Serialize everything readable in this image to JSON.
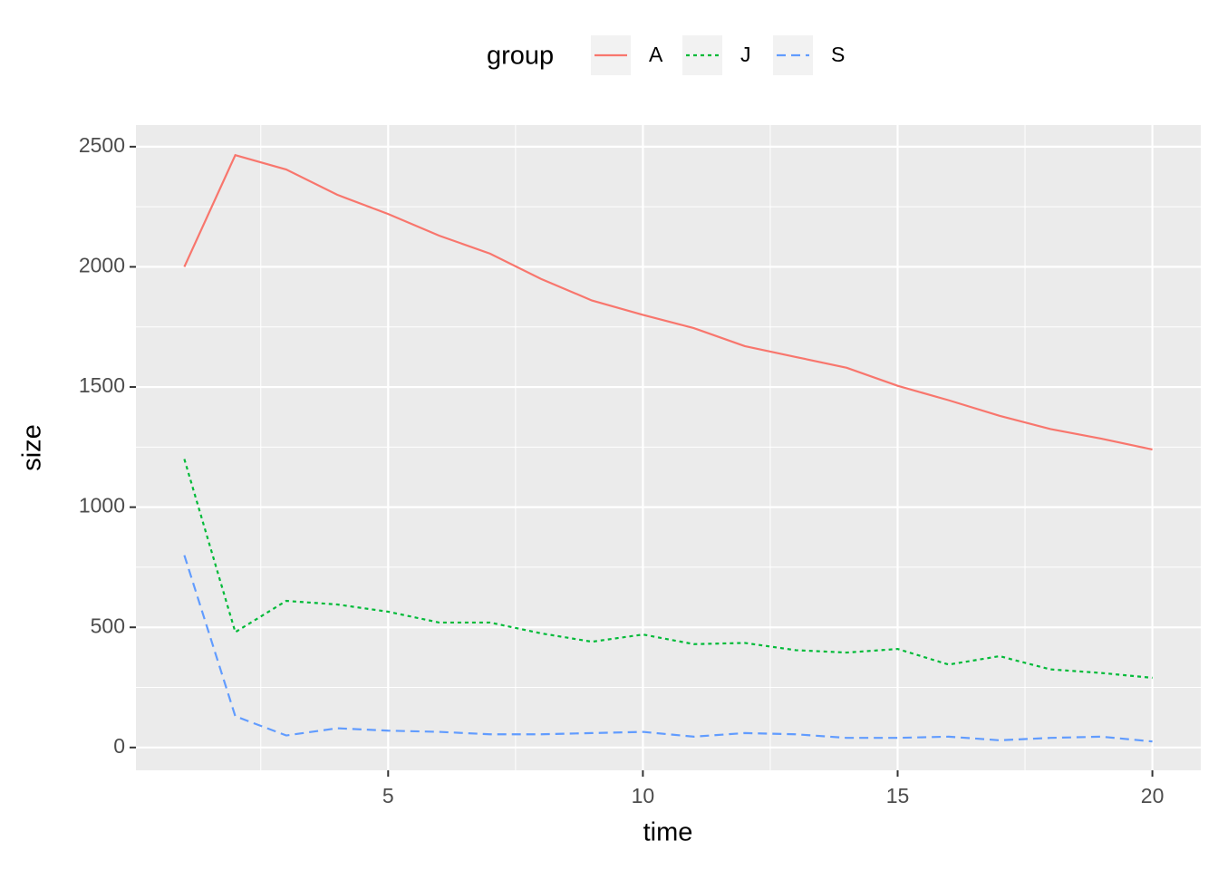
{
  "chart_data": {
    "type": "line",
    "x_label": "time",
    "y_label": "size",
    "legend_title": "group",
    "legend_position": "top",
    "x": [
      1,
      2,
      3,
      4,
      5,
      6,
      7,
      8,
      9,
      10,
      11,
      12,
      13,
      14,
      15,
      16,
      17,
      18,
      19,
      20
    ],
    "series": [
      {
        "name": "A",
        "color": "#f8766d",
        "linetype": "solid",
        "values": [
          2000,
          2465,
          2405,
          2300,
          2220,
          2130,
          2055,
          1950,
          1860,
          1800,
          1745,
          1670,
          1625,
          1580,
          1505,
          1445,
          1380,
          1325,
          1285,
          1240
        ]
      },
      {
        "name": "J",
        "color": "#00ba38",
        "linetype": "dotted",
        "values": [
          1200,
          480,
          610,
          595,
          565,
          520,
          520,
          475,
          440,
          470,
          430,
          435,
          405,
          395,
          410,
          345,
          380,
          325,
          310,
          290
        ]
      },
      {
        "name": "S",
        "color": "#619cff",
        "linetype": "dashed",
        "values": [
          800,
          130,
          50,
          80,
          70,
          65,
          55,
          55,
          60,
          65,
          45,
          60,
          55,
          40,
          40,
          45,
          30,
          40,
          45,
          25
        ]
      }
    ],
    "xlim": [
      0.05,
      20.95
    ],
    "xticks": [
      5,
      10,
      15,
      20
    ],
    "ylim": [
      -95,
      2590
    ],
    "yticks": [
      0,
      500,
      1000,
      1500,
      2000,
      2500
    ],
    "grid": true
  }
}
